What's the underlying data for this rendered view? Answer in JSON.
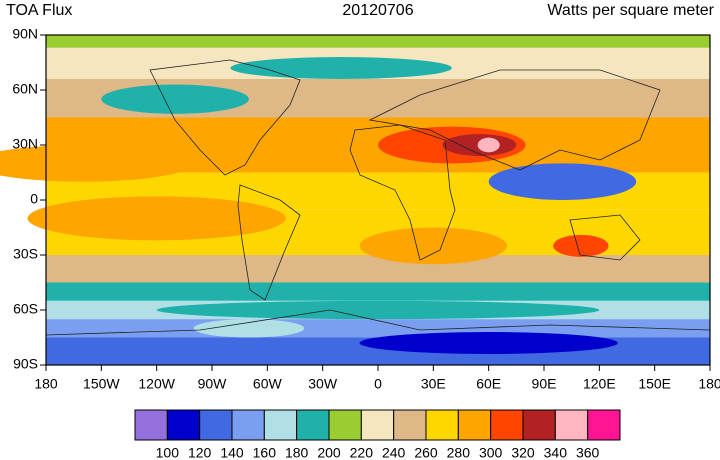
{
  "chart_data": {
    "type": "map",
    "title_left": "TOA Flux",
    "title_center": "20120706",
    "title_right": "Watts per square meter",
    "xlim": [
      -180,
      180
    ],
    "xticks": [
      {
        "value": -180,
        "label": "180"
      },
      {
        "value": -150,
        "label": "150W"
      },
      {
        "value": -120,
        "label": "120W"
      },
      {
        "value": -90,
        "label": "90W"
      },
      {
        "value": -60,
        "label": "60W"
      },
      {
        "value": -30,
        "label": "30W"
      },
      0,
      {
        "value": 30,
        "label": "30E"
      },
      {
        "value": 60,
        "label": "60E"
      },
      {
        "value": 90,
        "label": "90E"
      },
      {
        "value": 120,
        "label": "120E"
      },
      {
        "value": 150,
        "label": "150E"
      },
      {
        "value": 180,
        "label": "180"
      }
    ],
    "ylim": [
      -90,
      90
    ],
    "yticks": [
      {
        "value": 90,
        "label": "90N"
      },
      {
        "value": 60,
        "label": "60N"
      },
      {
        "value": 30,
        "label": "30N"
      },
      0,
      {
        "value": -30,
        "label": "30S"
      },
      {
        "value": -60,
        "label": "60S"
      },
      {
        "value": -90,
        "label": "90S"
      }
    ],
    "colorbar": {
      "levels": [
        100,
        120,
        140,
        160,
        180,
        200,
        220,
        240,
        260,
        280,
        300,
        320,
        340,
        360
      ],
      "colors": [
        "#9370db",
        "#0000cd",
        "#4169e1",
        "#7b9ff0",
        "#b0e0e6",
        "#20b2aa",
        "#9acd32",
        "#f5e6c0",
        "#deb887",
        "#ffd700",
        "#ffa500",
        "#ff4500",
        "#b22222",
        "#ffb6c1",
        "#ff1493"
      ]
    }
  }
}
